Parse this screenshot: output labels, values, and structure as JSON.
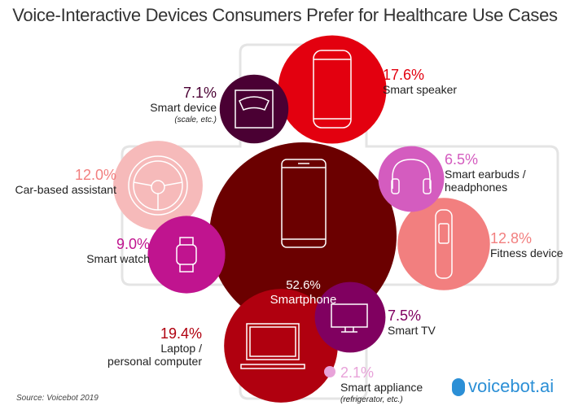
{
  "title": "Voice-Interactive Devices Consumers Prefer for Healthcare Use Cases",
  "source": "Source: Voicebot 2019",
  "logo": "voicebot.ai",
  "chart_data": {
    "type": "bubble",
    "title": "Voice-Interactive Devices Consumers Prefer for Healthcare Use Cases",
    "unit": "%",
    "items": [
      {
        "key": "smartphone",
        "label": "Smartphone",
        "value": 52.6,
        "pct": "52.6%",
        "color": "#6b0000",
        "icon": "smartphone-icon"
      },
      {
        "key": "laptop",
        "label": "Laptop / personal computer",
        "line1": "Laptop /",
        "line2": "personal computer",
        "value": 19.4,
        "pct": "19.4%",
        "color": "#b0000f",
        "icon": "laptop-icon"
      },
      {
        "key": "speaker",
        "label": "Smart speaker",
        "value": 17.6,
        "pct": "17.6%",
        "color": "#e3000f",
        "icon": "smart-speaker-icon"
      },
      {
        "key": "fitness",
        "label": "Fitness device",
        "value": 12.8,
        "pct": "12.8%",
        "color": "#f27f7f",
        "icon": "fitness-band-icon"
      },
      {
        "key": "car",
        "label": "Car-based assistant",
        "value": 12.0,
        "pct": "12.0%",
        "color": "#f6baba",
        "icon": "steering-wheel-icon"
      },
      {
        "key": "watch",
        "label": "Smart watch",
        "value": 9.0,
        "pct": "9.0%",
        "color": "#c0148f",
        "icon": "smart-watch-icon"
      },
      {
        "key": "tv",
        "label": "Smart TV",
        "value": 7.5,
        "pct": "7.5%",
        "color": "#800060",
        "icon": "tv-icon"
      },
      {
        "key": "device",
        "label": "Smart device",
        "note": "(scale, etc.)",
        "value": 7.1,
        "pct": "7.1%",
        "color": "#4a0033",
        "icon": "scale-icon"
      },
      {
        "key": "earbuds",
        "label": "Smart earbuds / headphones",
        "line1": "Smart earbuds /",
        "line2": "headphones",
        "value": 6.5,
        "pct": "6.5%",
        "color": "#d45cbf",
        "icon": "headphones-icon"
      },
      {
        "key": "appliance",
        "label": "Smart appliance",
        "note": "(refrigerator, etc.)",
        "value": 2.1,
        "pct": "2.1%",
        "color": "#e8a3d9",
        "icon": ""
      }
    ]
  }
}
